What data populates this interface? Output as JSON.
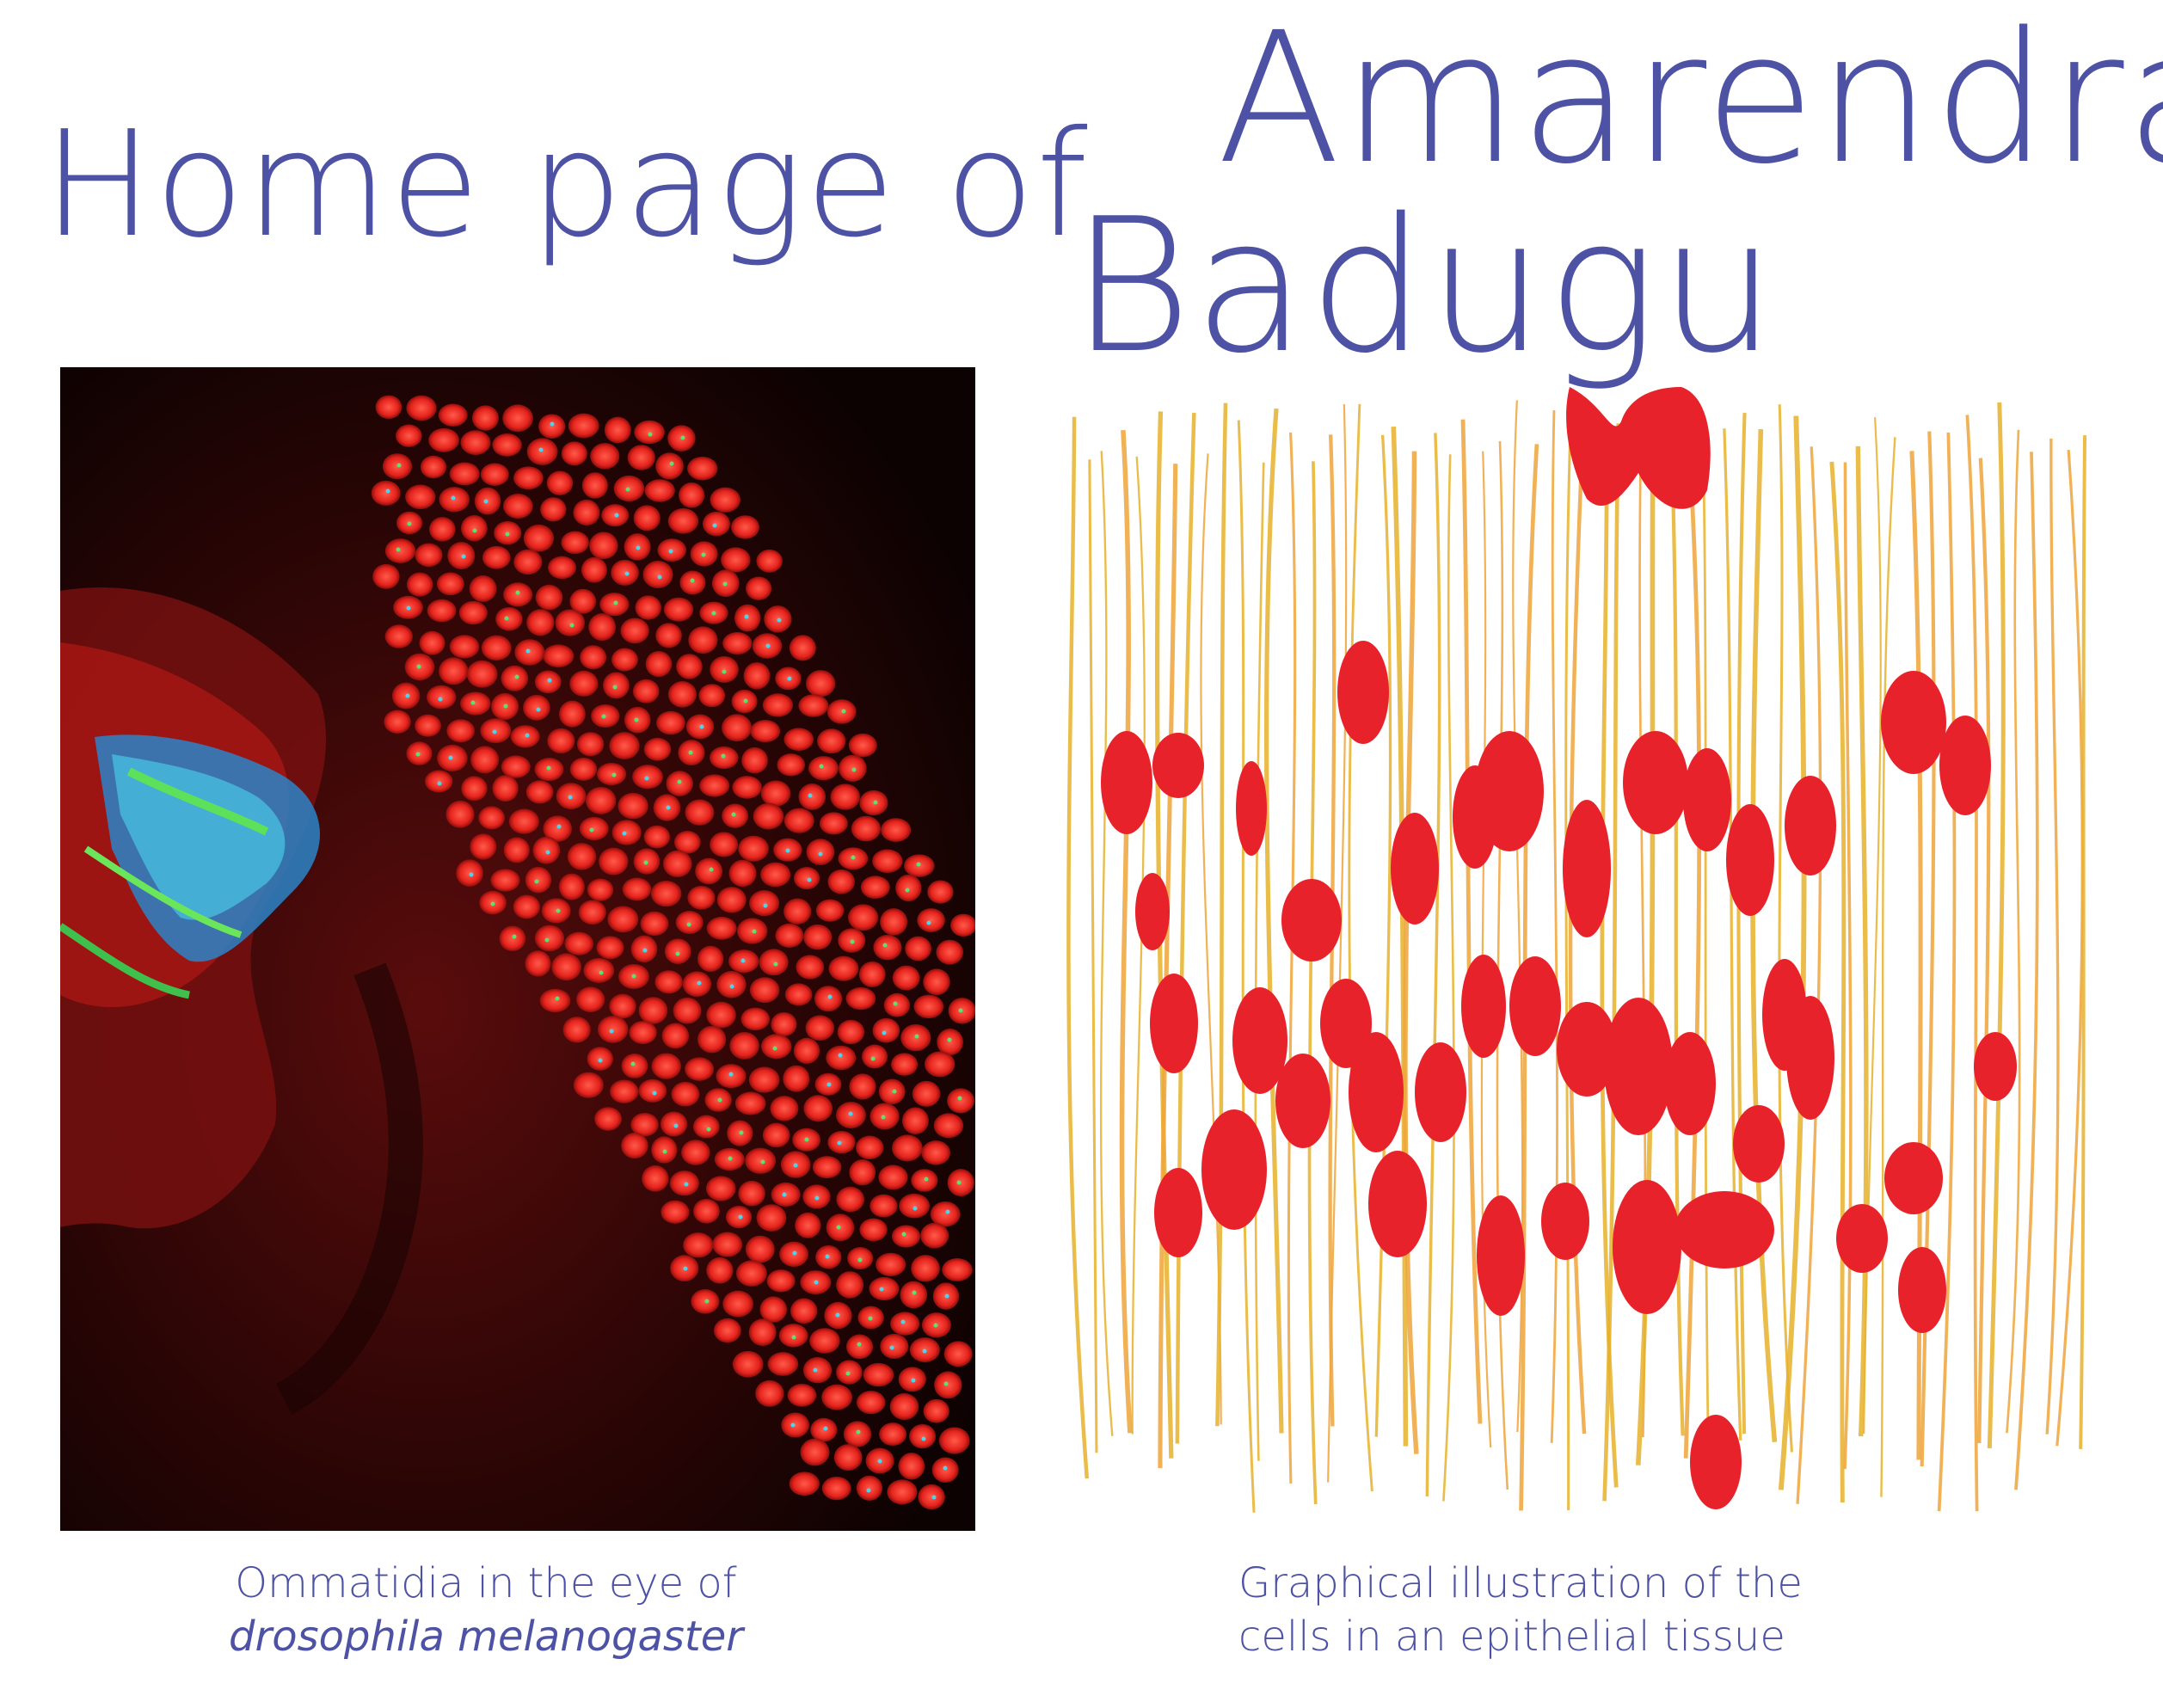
{
  "header": {
    "prefix": "Home page of",
    "first_name": "Amarendra",
    "last_name": "Badugu"
  },
  "colors": {
    "accent": "#4e52a5",
    "cell_red": "#e8222a",
    "membrane_yellow": "#e6b12a"
  },
  "left_figure": {
    "caption_line1": "Ommatidia in the eye of",
    "caption_line2": "drosophila melanogaster"
  },
  "right_figure": {
    "caption_line1": "Graphical illustration of the",
    "caption_line2": "cells in an epithelial tissue"
  }
}
